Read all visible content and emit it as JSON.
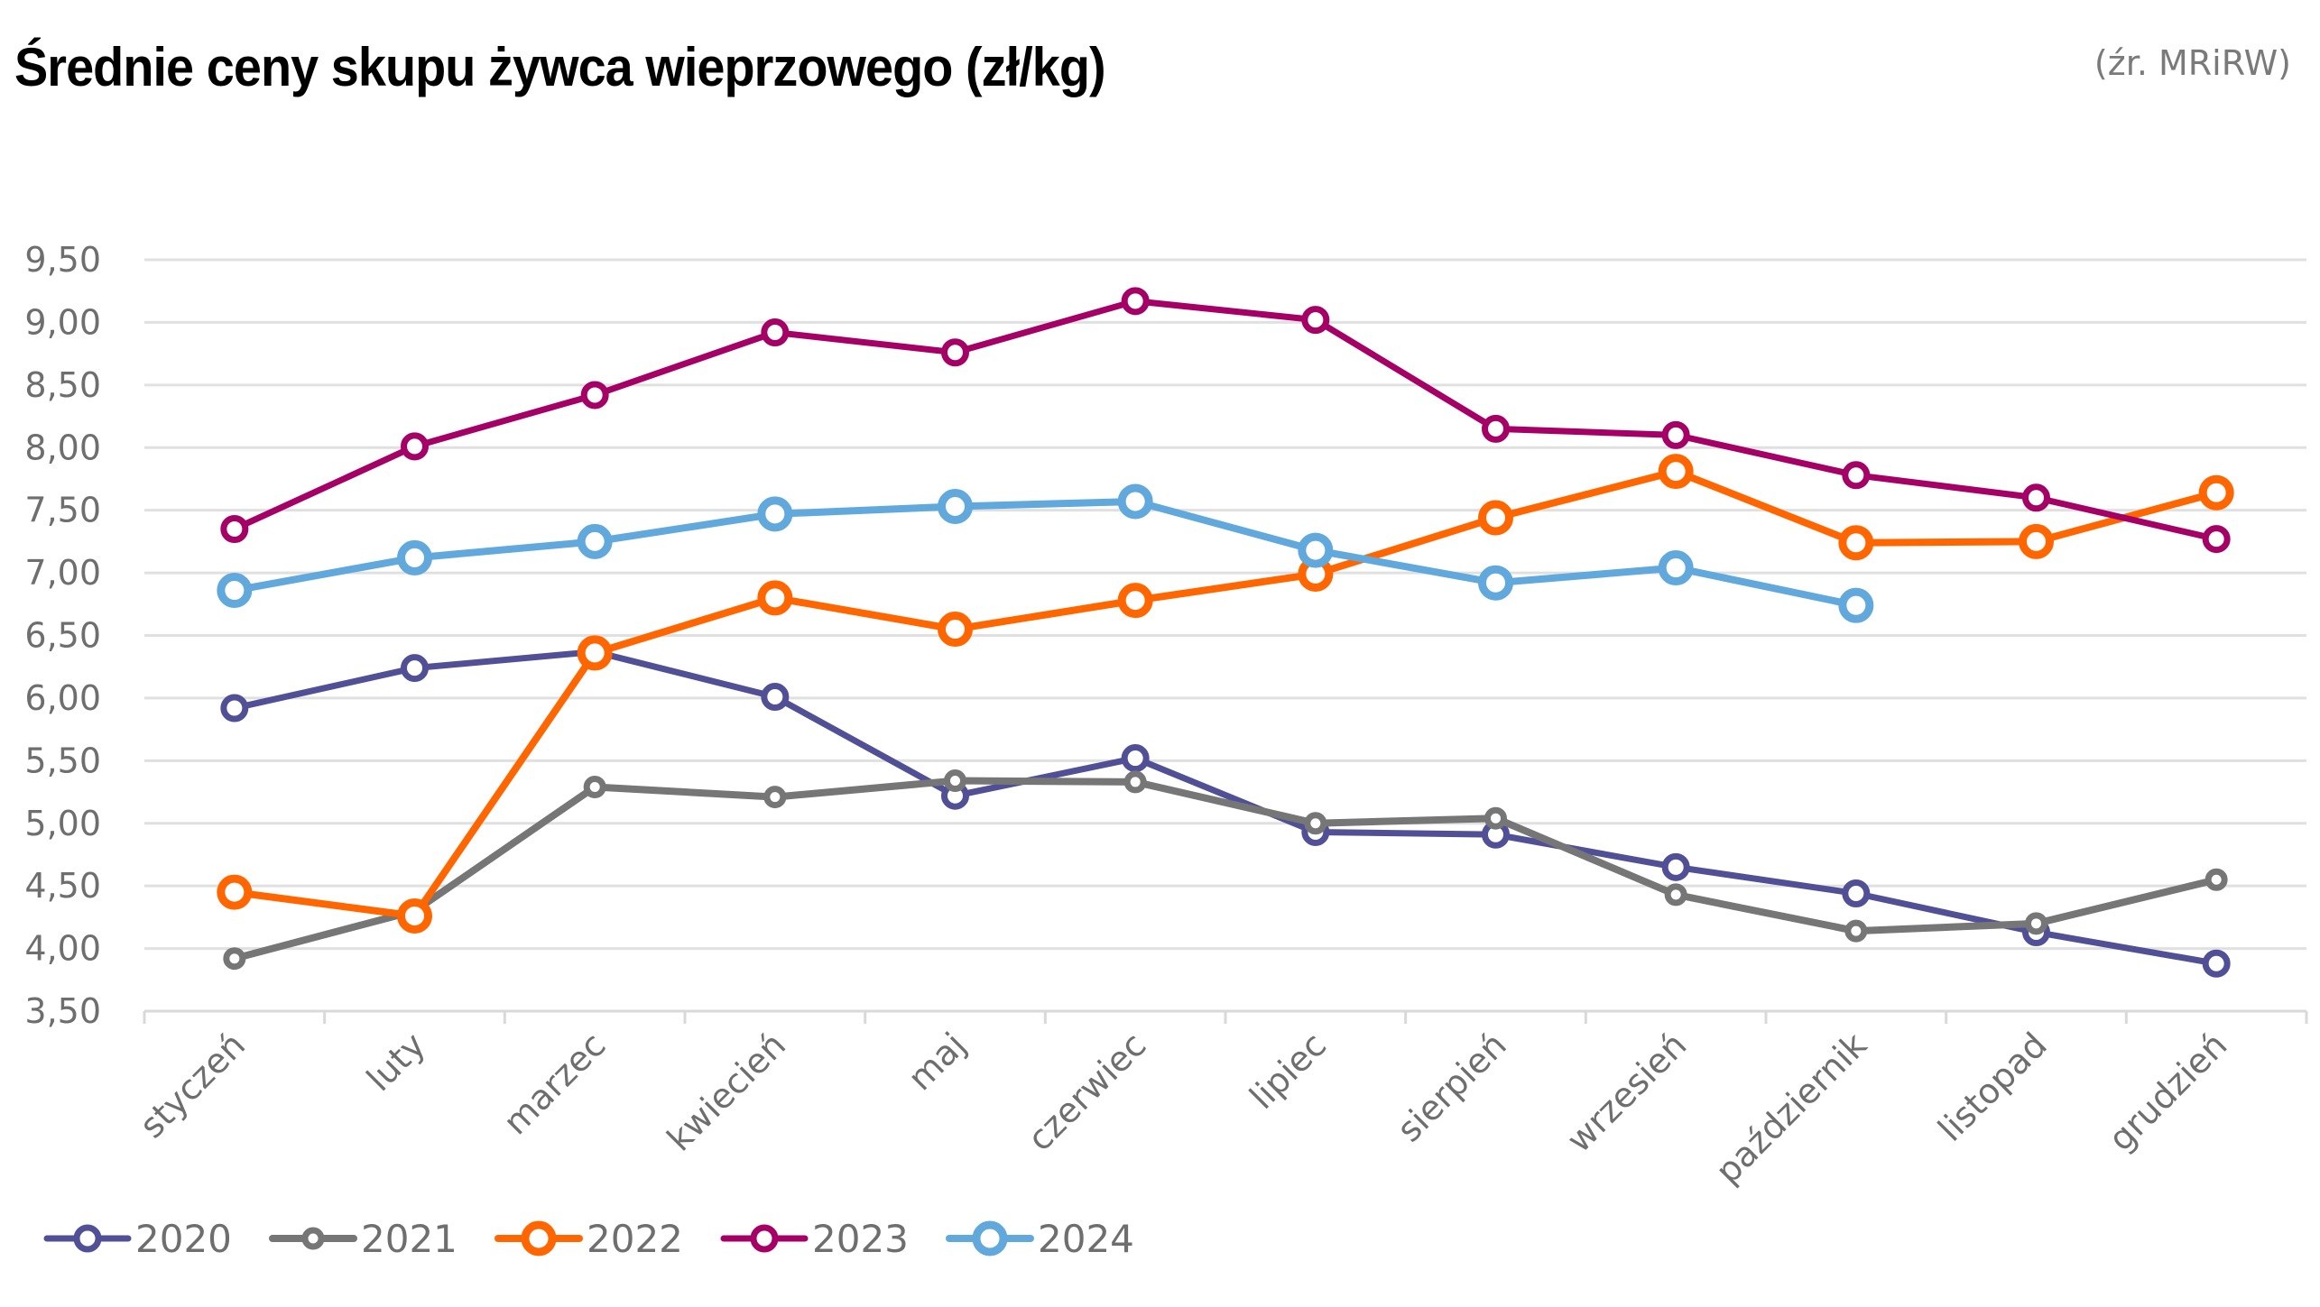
{
  "chart_data": {
    "type": "line",
    "title": "Średnie ceny skupu żywca wieprzowego (zł/kg)",
    "source": "(źr. MRiRW)",
    "xlabel": "",
    "ylabel": "",
    "ylim": [
      3.5,
      9.5
    ],
    "yticks": [
      "9,50",
      "9,00",
      "8,50",
      "8,00",
      "7,50",
      "7,00",
      "6,50",
      "6,00",
      "5,50",
      "5,00",
      "4,50",
      "4,00",
      "3,50"
    ],
    "ytick_values": [
      9.5,
      9.0,
      8.5,
      8.0,
      7.5,
      7.0,
      6.5,
      6.0,
      5.5,
      5.0,
      4.5,
      4.0,
      3.5
    ],
    "grid": true,
    "legend_position": "bottom-left",
    "categories": [
      "styczeń",
      "luty",
      "marzec",
      "kwiecień",
      "maj",
      "czerwiec",
      "lipiec",
      "sierpień",
      "wrzesień",
      "październik",
      "listopad",
      "grudzień"
    ],
    "series": [
      {
        "name": "2020",
        "color": "#515096",
        "marker": "medium",
        "values": [
          5.92,
          6.24,
          6.37,
          6.01,
          5.22,
          5.52,
          4.93,
          4.91,
          4.65,
          4.44,
          4.13,
          3.88
        ]
      },
      {
        "name": "2021",
        "color": "#767676",
        "marker": "small",
        "values": [
          3.92,
          4.3,
          5.29,
          5.21,
          5.34,
          5.33,
          5.0,
          5.04,
          4.43,
          4.14,
          4.2,
          4.55
        ]
      },
      {
        "name": "2022",
        "color": "#ff6600",
        "marker": "large",
        "values": [
          4.45,
          4.26,
          6.36,
          6.8,
          6.55,
          6.78,
          6.99,
          7.44,
          7.81,
          7.24,
          7.25,
          7.64
        ]
      },
      {
        "name": "2023",
        "color": "#a50066",
        "marker": "medium",
        "values": [
          7.35,
          8.01,
          8.42,
          8.92,
          8.76,
          9.17,
          9.02,
          8.15,
          8.1,
          7.78,
          7.6,
          7.27
        ]
      },
      {
        "name": "2024",
        "color": "#61a8dc",
        "marker": "large",
        "values": [
          6.86,
          7.12,
          7.25,
          7.47,
          7.53,
          7.57,
          7.18,
          6.92,
          7.04,
          6.74,
          null,
          null
        ]
      }
    ]
  }
}
